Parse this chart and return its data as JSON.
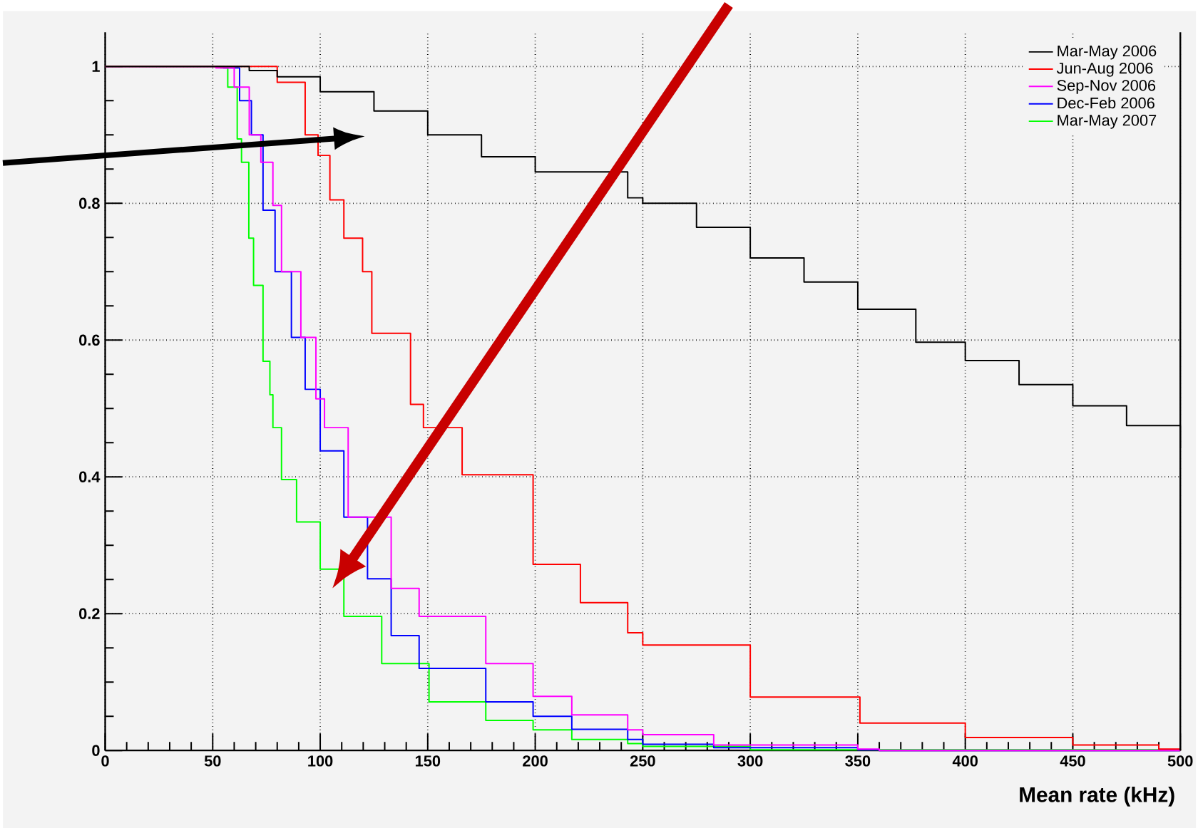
{
  "chart_data": {
    "type": "step",
    "xlabel": "Mean rate (kHz)",
    "xlim": [
      0,
      500
    ],
    "ylim": [
      0,
      1.05
    ],
    "xticks": [
      0,
      50,
      100,
      150,
      200,
      250,
      300,
      350,
      400,
      450,
      500
    ],
    "yticks": [
      0,
      0.2,
      0.4,
      0.6,
      0.8,
      1
    ],
    "grid": true,
    "legend": "top right",
    "series": [
      {
        "name": "Mar-May 2006",
        "color": "#000000",
        "x": [
          0,
          55,
          67,
          80,
          100,
          125,
          150,
          175,
          200,
          243,
          250,
          275,
          300,
          325,
          350,
          377,
          400,
          425,
          450,
          475,
          500
        ],
        "values": [
          1,
          1,
          0.994,
          0.985,
          0.963,
          0.935,
          0.9,
          0.868,
          0.846,
          0.808,
          0.8,
          0.765,
          0.72,
          0.685,
          0.645,
          0.597,
          0.57,
          0.535,
          0.504,
          0.475,
          0.442
        ]
      },
      {
        "name": "Jun-Aug 2006",
        "color": "#ff0000",
        "x": [
          0,
          67,
          80,
          93,
          99,
          104.5,
          111,
          119.7,
          124,
          142,
          148,
          166,
          199,
          221,
          243,
          250,
          300,
          351,
          400,
          450,
          490,
          500
        ],
        "values": [
          1,
          1,
          0.977,
          0.9,
          0.87,
          0.805,
          0.749,
          0.7,
          0.61,
          0.506,
          0.472,
          0.403,
          0.272,
          0.216,
          0.172,
          0.154,
          0.078,
          0.04,
          0.019,
          0.008,
          0.002,
          0
        ]
      },
      {
        "name": "Sep-Nov 2006",
        "color": "#ff00ff",
        "x": [
          0,
          51.5,
          60,
          67,
          72.4,
          78,
          82,
          91,
          98,
          102,
          113,
          133,
          146,
          177,
          199,
          217,
          243,
          250,
          283,
          350,
          360,
          500
        ],
        "values": [
          1,
          0.998,
          0.97,
          0.9,
          0.86,
          0.797,
          0.7,
          0.604,
          0.514,
          0.472,
          0.341,
          0.237,
          0.196,
          0.127,
          0.079,
          0.052,
          0.03,
          0.023,
          0.008,
          0.002,
          0,
          0
        ]
      },
      {
        "name": "Dec-Feb 2006",
        "color": "#0000ff",
        "x": [
          0,
          55,
          62.5,
          68,
          73.4,
          79,
          86.6,
          93,
          100,
          111,
          122,
          133,
          146,
          177,
          199,
          217,
          243,
          250,
          283,
          350,
          360,
          500
        ],
        "values": [
          1,
          0.998,
          0.95,
          0.9,
          0.79,
          0.7,
          0.604,
          0.528,
          0.438,
          0.341,
          0.251,
          0.168,
          0.12,
          0.071,
          0.05,
          0.031,
          0.016,
          0.009,
          0.004,
          0.001,
          0,
          0
        ]
      },
      {
        "name": "Mar-May 2007",
        "color": "#00ff00",
        "x": [
          0,
          53.6,
          57,
          61.4,
          63.4,
          66.8,
          69,
          73.4,
          76.6,
          78,
          82,
          89,
          100,
          111,
          128.6,
          150.6,
          177,
          199,
          217,
          243,
          250,
          300,
          500
        ],
        "values": [
          1,
          0.998,
          0.97,
          0.894,
          0.86,
          0.749,
          0.68,
          0.569,
          0.52,
          0.472,
          0.396,
          0.334,
          0.265,
          0.196,
          0.127,
          0.071,
          0.044,
          0.03,
          0.016,
          0.01,
          0.006,
          0.001,
          0
        ]
      }
    ]
  }
}
